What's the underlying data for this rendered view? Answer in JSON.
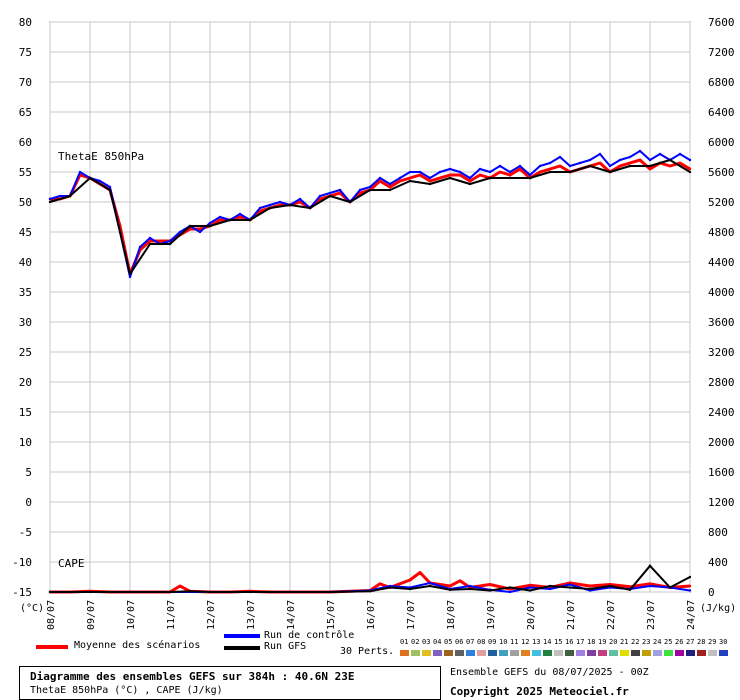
{
  "chart_data": {
    "type": "line",
    "left_axis": {
      "unit": "(°C)",
      "ticks": [
        80,
        75,
        70,
        65,
        60,
        55,
        50,
        45,
        40,
        35,
        30,
        25,
        20,
        15,
        10,
        5,
        0,
        -5,
        -10,
        -15
      ],
      "range": [
        -15,
        80
      ]
    },
    "right_axis": {
      "unit": "(J/kg)",
      "ticks": [
        7600,
        7200,
        6800,
        6400,
        6000,
        5600,
        5200,
        4800,
        4400,
        4000,
        3600,
        3200,
        2800,
        2400,
        2000,
        1600,
        1200,
        800,
        400,
        0
      ],
      "range": [
        0,
        7600
      ]
    },
    "x_labels": [
      "08/07",
      "09/07",
      "10/07",
      "11/07",
      "12/07",
      "13/07",
      "14/07",
      "15/07",
      "16/07",
      "17/07",
      "18/07",
      "19/07",
      "20/07",
      "21/07",
      "22/07",
      "23/07",
      "24/07"
    ],
    "x_range": [
      0,
      16
    ],
    "grid": true,
    "panel_labels": {
      "thetae": "ThetaE 850hPa",
      "cape": "CAPE"
    },
    "series": [
      {
        "name": "Moyenne des scénarios",
        "color": "#ff0000",
        "panel": "thetae",
        "x": [
          0,
          0.25,
          0.5,
          0.75,
          1,
          1.25,
          1.5,
          1.75,
          2,
          2.25,
          2.5,
          2.75,
          3,
          3.25,
          3.5,
          3.75,
          4,
          4.25,
          4.5,
          4.75,
          5,
          5.25,
          5.5,
          5.75,
          6,
          6.25,
          6.5,
          6.75,
          7,
          7.25,
          7.5,
          7.75,
          8,
          8.25,
          8.5,
          8.75,
          9,
          9.25,
          9.5,
          9.75,
          10,
          10.25,
          10.5,
          10.75,
          11,
          11.25,
          11.5,
          11.75,
          12,
          12.25,
          12.5,
          12.75,
          13,
          13.25,
          13.5,
          13.75,
          14,
          14.25,
          14.5,
          14.75,
          15,
          15.25,
          15.5,
          15.75,
          16
        ],
        "values": [
          50.5,
          50.5,
          51,
          54.5,
          54,
          53,
          52,
          46,
          38,
          42,
          43.5,
          43.5,
          43.5,
          44.5,
          45.5,
          45.5,
          46,
          47,
          47,
          47.5,
          47,
          48.5,
          49,
          49.5,
          49.5,
          50,
          49,
          50.5,
          51,
          51.5,
          50,
          51.5,
          52,
          53.5,
          52.5,
          53.5,
          54,
          54.5,
          53.5,
          54,
          54.5,
          54.5,
          53.5,
          54.5,
          54,
          55,
          54.5,
          55.5,
          54,
          55,
          55.5,
          56,
          55,
          55.5,
          56,
          56.5,
          55,
          56,
          56.5,
          57,
          55.5,
          56.5,
          56,
          56.5,
          55.5
        ]
      },
      {
        "name": "Run de contrôle",
        "color": "#0000ff",
        "panel": "thetae",
        "x": [
          0,
          0.25,
          0.5,
          0.75,
          1,
          1.25,
          1.5,
          1.75,
          2,
          2.25,
          2.5,
          2.75,
          3,
          3.25,
          3.5,
          3.75,
          4,
          4.25,
          4.5,
          4.75,
          5,
          5.25,
          5.5,
          5.75,
          6,
          6.25,
          6.5,
          6.75,
          7,
          7.25,
          7.5,
          7.75,
          8,
          8.25,
          8.5,
          8.75,
          9,
          9.25,
          9.5,
          9.75,
          10,
          10.25,
          10.5,
          10.75,
          11,
          11.25,
          11.5,
          11.75,
          12,
          12.25,
          12.5,
          12.75,
          13,
          13.25,
          13.5,
          13.75,
          14,
          14.25,
          14.5,
          14.75,
          15,
          15.25,
          15.5,
          15.75,
          16
        ],
        "values": [
          50.5,
          51,
          51,
          55,
          54,
          53.5,
          52.5,
          45,
          37.5,
          42.5,
          44,
          43,
          43.5,
          45,
          46,
          45,
          46.5,
          47.5,
          47,
          48,
          47,
          49,
          49.5,
          50,
          49.5,
          50.5,
          49,
          51,
          51.5,
          52,
          50,
          52,
          52.5,
          54,
          53,
          54,
          55,
          55,
          54,
          55,
          55.5,
          55,
          54,
          55.5,
          55,
          56,
          55,
          56,
          54.5,
          56,
          56.5,
          57.5,
          56,
          56.5,
          57,
          58,
          56,
          57,
          57.5,
          58.5,
          57,
          58,
          57,
          58,
          57
        ]
      },
      {
        "name": "Run GFS",
        "color": "#000000",
        "panel": "thetae",
        "x": [
          0,
          0.5,
          1,
          1.5,
          2,
          2.5,
          3,
          3.5,
          4,
          4.5,
          5,
          5.5,
          6,
          6.5,
          7,
          7.5,
          8,
          8.5,
          9,
          9.5,
          10,
          10.5,
          11,
          11.5,
          12,
          12.5,
          13,
          13.5,
          14,
          14.5,
          15,
          15.5,
          16
        ],
        "values": [
          50,
          51,
          54,
          52,
          38,
          43,
          43,
          46,
          46,
          47,
          47,
          49,
          49.5,
          49,
          51,
          50,
          52,
          52,
          53.5,
          53,
          54,
          53,
          54,
          54,
          54,
          55,
          55,
          56,
          55,
          56,
          56,
          57,
          55
        ]
      },
      {
        "name": "Moyenne des scénarios",
        "color": "#ff0000",
        "panel": "cape",
        "x": [
          0,
          0.5,
          1,
          1.5,
          2,
          2.5,
          3,
          3.25,
          3.5,
          4,
          4.5,
          5,
          5.5,
          6,
          6.5,
          7,
          7.5,
          8,
          8.25,
          8.5,
          9,
          9.25,
          9.5,
          10,
          10.25,
          10.5,
          11,
          11.5,
          12,
          12.5,
          13,
          13.5,
          14,
          14.5,
          15,
          15.5,
          16
        ],
        "values": [
          0,
          0,
          10,
          0,
          0,
          0,
          0,
          80,
          10,
          0,
          0,
          10,
          0,
          0,
          0,
          0,
          10,
          20,
          110,
          60,
          160,
          260,
          120,
          80,
          150,
          60,
          100,
          40,
          90,
          60,
          120,
          80,
          100,
          70,
          110,
          60,
          80
        ]
      },
      {
        "name": "Run de contrôle",
        "color": "#0000ff",
        "panel": "cape",
        "x": [
          0,
          1,
          2,
          3,
          4,
          5,
          6,
          7,
          8,
          8.5,
          9,
          9.5,
          10,
          10.5,
          11,
          11.5,
          12,
          12.5,
          13,
          13.5,
          14,
          14.5,
          15,
          15.5,
          16
        ],
        "values": [
          0,
          0,
          0,
          0,
          0,
          0,
          0,
          0,
          20,
          80,
          60,
          120,
          40,
          80,
          30,
          0,
          60,
          40,
          100,
          20,
          60,
          40,
          80,
          60,
          20
        ]
      },
      {
        "name": "Run GFS",
        "color": "#000000",
        "panel": "cape",
        "x": [
          0,
          1,
          2,
          3,
          3.5,
          4,
          5,
          6,
          7,
          8,
          8.5,
          9,
          9.5,
          10,
          10.5,
          11,
          11.5,
          12,
          12.5,
          13,
          13.5,
          14,
          14.5,
          15,
          15.5,
          16
        ],
        "values": [
          0,
          0,
          0,
          0,
          10,
          0,
          0,
          0,
          0,
          10,
          60,
          40,
          80,
          30,
          40,
          20,
          60,
          20,
          80,
          60,
          40,
          80,
          30,
          350,
          60,
          200
        ]
      }
    ],
    "legend": {
      "mean": "Moyenne des scénarios",
      "control": "Run de contrôle",
      "gfs": "Run GFS",
      "perts_label": "30 Perts.",
      "perts": [
        "01",
        "02",
        "03",
        "04",
        "05",
        "06",
        "07",
        "08",
        "09",
        "10",
        "11",
        "12",
        "13",
        "14",
        "15",
        "16",
        "17",
        "18",
        "19",
        "20",
        "21",
        "22",
        "23",
        "24",
        "25",
        "26",
        "27",
        "28",
        "29",
        "30"
      ],
      "pert_colors": [
        "#e07020",
        "#a0c060",
        "#e0c020",
        "#8060c0",
        "#a06020",
        "#606060",
        "#3080e0",
        "#e0a0a0",
        "#2060a0",
        "#40a0c0",
        "#a0a0a0",
        "#e08020",
        "#40c0e0",
        "#208040",
        "#c0c0c0",
        "#406040",
        "#a080e0",
        "#8040a0",
        "#c04080",
        "#60c0a0",
        "#e0e000",
        "#404040",
        "#c0a000",
        "#a0a0e0",
        "#40e040",
        "#a000a0",
        "#202080",
        "#a02020",
        "#c0c0c0",
        "#2040c0"
      ]
    },
    "footer": {
      "title": "Diagramme des ensembles GEFS sur 384h : 40.6N 23E",
      "subtitle": "ThetaE 850hPa (°C) , CAPE (J/kg)",
      "run": "Ensemble GEFS du 08/07/2025 - 00Z",
      "copyright": "Copyright 2025 Meteociel.fr"
    }
  }
}
